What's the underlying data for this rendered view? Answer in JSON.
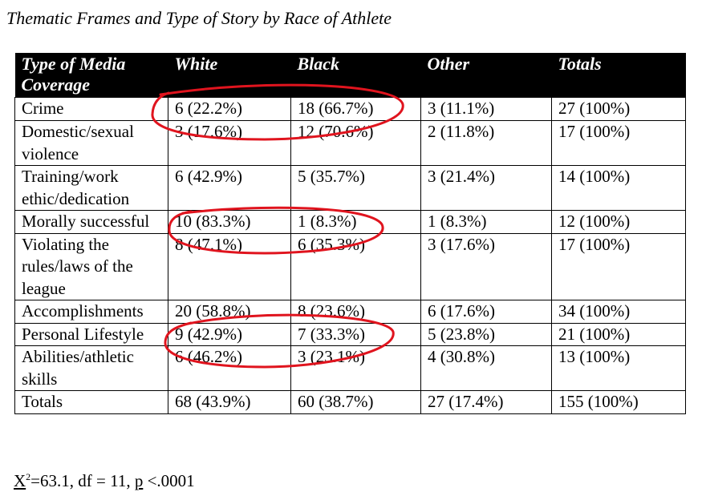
{
  "title": "Thematic Frames and Type of Story by Race of Athlete",
  "table": {
    "headers": [
      "Type of Media Coverage",
      "White",
      "Black",
      "Other",
      "Totals"
    ],
    "rows": [
      {
        "type": "Crime",
        "white": "6 (22.2%)",
        "black": "18 (66.7%)",
        "other": "3 (11.1%)",
        "total": "27 (100%)"
      },
      {
        "type": "Domestic/sexual violence",
        "white": "3 (17.6%)",
        "black": "12 (70.6%)",
        "other": "2 (11.8%)",
        "total": "17 (100%)"
      },
      {
        "type": "Training/work ethic/dedication",
        "white": "6 (42.9%)",
        "black": "5 (35.7%)",
        "other": "3 (21.4%)",
        "total": "14 (100%)"
      },
      {
        "type": "Morally successful",
        "white": "10 (83.3%)",
        "black": "1 (8.3%)",
        "other": "1 (8.3%)",
        "total": "12 (100%)"
      },
      {
        "type": "Violating the rules/laws of the league",
        "white": "8 (47.1%)",
        "black": "6 (35.3%)",
        "other": "3 (17.6%)",
        "total": "17 (100%)"
      },
      {
        "type": "Accomplishments",
        "white": "20 (58.8%)",
        "black": "8 (23.6%)",
        "other": "6 (17.6%)",
        "total": "34 (100%)"
      },
      {
        "type": "Personal Lifestyle",
        "white": "9 (42.9%)",
        "black": "7 (33.3%)",
        "other": "5 (23.8%)",
        "total": "21 (100%)"
      },
      {
        "type": "Abilities/athletic skills",
        "white": "6 (46.2%)",
        "black": "3 (23.1%)",
        "other": "4 (30.8%)",
        "total": "13 (100%)"
      },
      {
        "type": "Totals",
        "white": "68 (43.9%)",
        "black": "60 (38.7%)",
        "other": "27 (17.4%)",
        "total": "155 (100%)"
      }
    ]
  },
  "stats": {
    "chi_symbol": "X",
    "chi_exponent": "2",
    "chi_value": "=63.1, df = 11, ",
    "p_symbol": "p",
    "p_value": " <.0001"
  },
  "annotation_color": "#e0141e"
}
